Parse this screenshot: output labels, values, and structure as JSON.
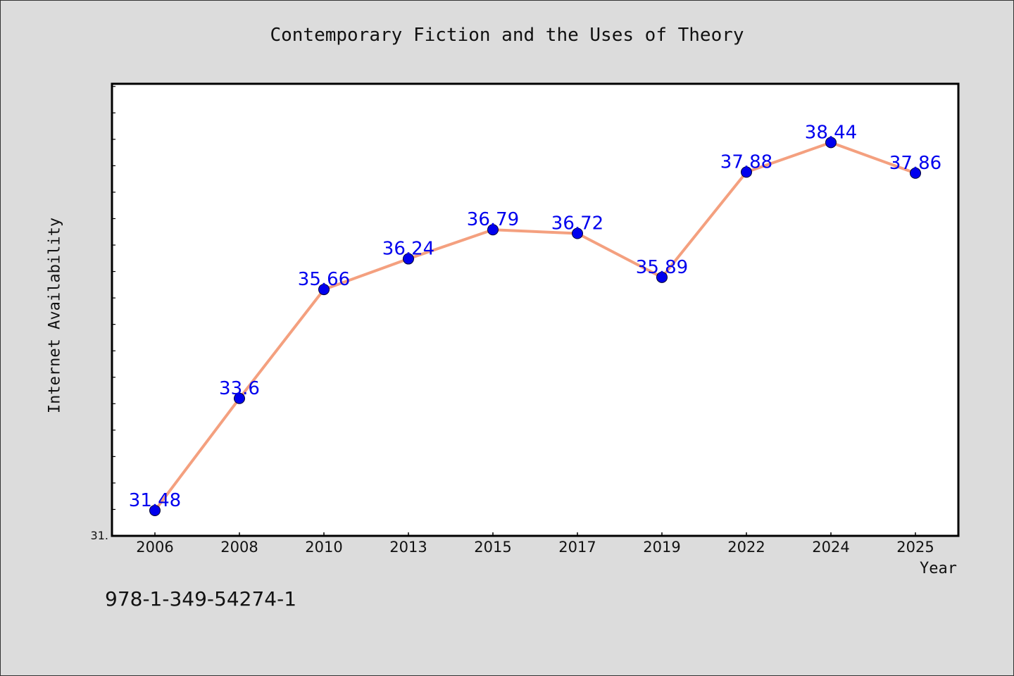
{
  "chart_data": {
    "type": "line",
    "title": "Contemporary Fiction and the Uses of Theory",
    "xlabel": "Year",
    "ylabel": "Internet Availability",
    "categories": [
      "2006",
      "2008",
      "2010",
      "2013",
      "2015",
      "2017",
      "2019",
      "2022",
      "2024",
      "2025"
    ],
    "series": [
      {
        "values": [
          31.48,
          33.6,
          35.66,
          36.24,
          36.79,
          36.72,
          35.89,
          37.88,
          38.44,
          37.86
        ],
        "data_labels": [
          "31.48",
          "33.6",
          "35.66",
          "36.24",
          "36.79",
          "36.72",
          "35.89",
          "37.88",
          "38.44",
          "37.86"
        ]
      }
    ],
    "ylim": [
      31.0,
      39.55
    ],
    "y_tick_label": "31.",
    "y_minor_step": 0.5,
    "grid": false,
    "line_color": "#f4a07f",
    "marker_color": "#0000ee",
    "label_color": "#0000ee",
    "plot_background": "#ffffff",
    "figure_background": "#dcdcdc"
  },
  "footnote": "978-1-349-54274-1"
}
